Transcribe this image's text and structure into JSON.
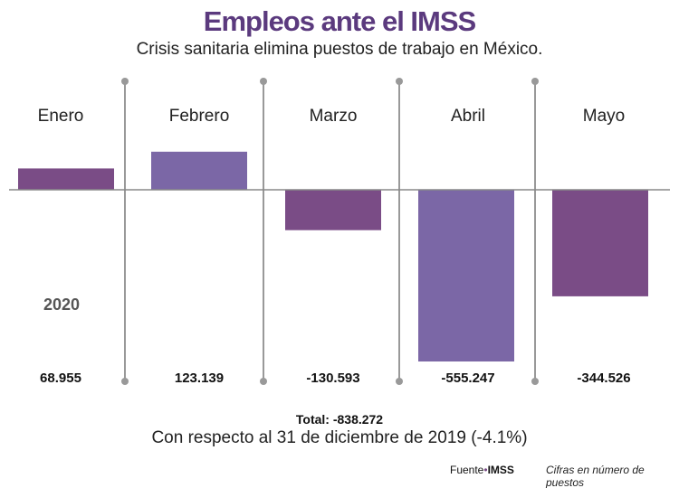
{
  "chart_data": {
    "type": "bar",
    "title": "Empleos ante el IMSS",
    "subtitle": "Crisis sanitaria elimina puestos de trabajo en México.",
    "categories": [
      "Enero",
      "Febrero",
      "Marzo",
      "Abril",
      "Mayo"
    ],
    "values": [
      68955,
      123139,
      -130593,
      -555247,
      -344526
    ],
    "value_labels": [
      "68.955",
      "123.139",
      "-130.593",
      "-555.247",
      "-344.526"
    ],
    "year_label": "2020",
    "total_label": "Total: -838.272",
    "note": "Con respecto al 31 de diciembre de 2019 (-4.1%)",
    "source_label": "Fuente",
    "source_name": "IMSS",
    "units_note": "Cifras en número de puestos",
    "grid": false,
    "colors": [
      "#7a4c86",
      "#7b67a6",
      "#7a4c86",
      "#7b67a6",
      "#7a4c86"
    ],
    "title_color": "#5b3a7e",
    "divider_color": "#999999"
  }
}
